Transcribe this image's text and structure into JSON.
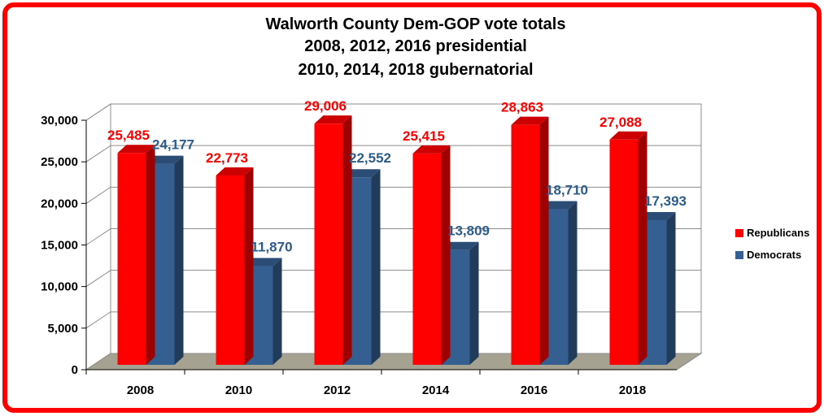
{
  "chart_data": {
    "type": "bar",
    "title": [
      "Walworth County Dem-GOP vote totals",
      "2008, 2012, 2016 presidential",
      "2010, 2014, 2018 gubernatorial"
    ],
    "categories": [
      "2008",
      "2010",
      "2012",
      "2014",
      "2016",
      "2018"
    ],
    "series": [
      {
        "name": "Republicans",
        "values": [
          25485,
          22773,
          29006,
          25415,
          28863,
          27088
        ],
        "labels": [
          "25,485",
          "22,773",
          "29,006",
          "25,415",
          "28,863",
          "27,088"
        ],
        "color": "#ff0000",
        "label_color": "#ff0000"
      },
      {
        "name": "Democrats",
        "values": [
          24177,
          11870,
          22552,
          13809,
          18710,
          17393
        ],
        "labels": [
          "24,177",
          "11,870",
          "22,552",
          "13,809",
          "18,710",
          "17,393"
        ],
        "color": "#365f91",
        "label_color": "#2e5c8a"
      }
    ],
    "ylim": [
      0,
      30000
    ],
    "yticks": [
      0,
      5000,
      10000,
      15000,
      20000,
      25000,
      30000
    ],
    "ytick_labels": [
      "0",
      "5,000",
      "10,000",
      "15,000",
      "20,000",
      "25,000",
      "30,000"
    ],
    "grid": true,
    "legend_position": "right",
    "frame_color": "#ff0000",
    "floor_color": "#a6a291"
  }
}
